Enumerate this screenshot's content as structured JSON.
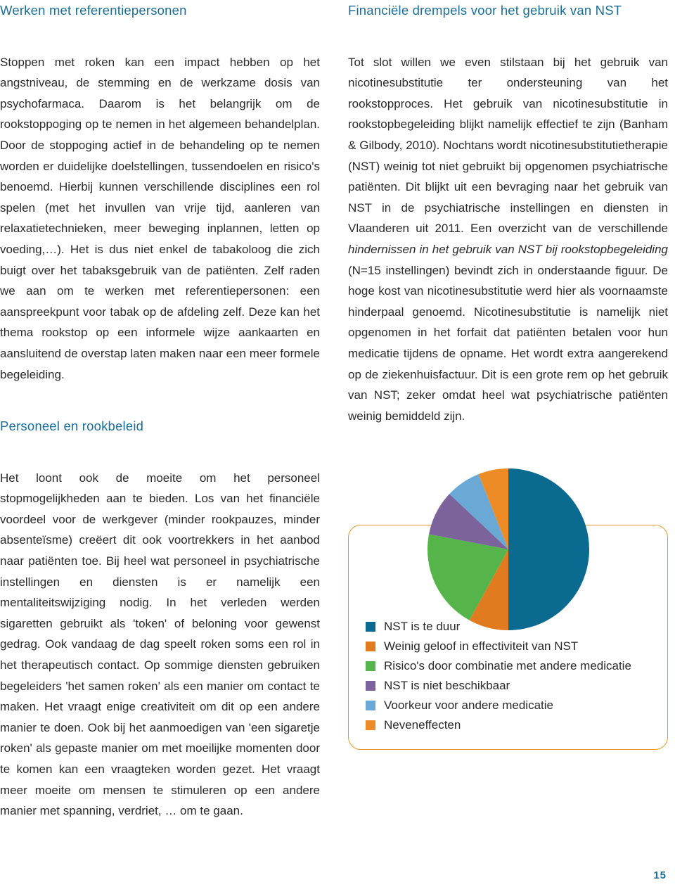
{
  "left": {
    "heading1": "Werken met referentiepersonen",
    "para1": "Stoppen met roken kan een impact hebben op het angstniveau, de stemming en de werkzame dosis van psychofarmaca. Daarom is het belangrijk om de rookstoppoging op te nemen in het algemeen behandelplan. Door de stoppoging actief in de behandeling op te nemen worden er duidelijke doelstellingen, tussendoelen en risico's benoemd. Hierbij kunnen verschillende disciplines een rol spelen (met het invullen van vrije tijd, aanleren van relaxatietechnieken, meer beweging inplannen, letten op voeding,…). Het is dus niet enkel de tabakoloog die zich buigt over het tabaksgebruik van de patiënten. Zelf raden we aan om te werken met referentiepersonen: een aanspreekpunt voor tabak op de afdeling zelf. Deze kan het thema rookstop op een informele wijze aankaarten en aansluitend de overstap laten maken naar een meer formele begeleiding.",
    "heading2": "Personeel en rookbeleid",
    "para2": "Het loont ook de moeite om het personeel stopmogelijkheden aan te bieden. Los van het financiële voordeel voor de werkgever (minder rookpauzes, minder absenteïsme) creëert dit ook voortrekkers in het aanbod naar patiënten toe. Bij heel wat personeel in psychiatrische instellingen en diensten is er namelijk een mentaliteitswijziging nodig. In het verleden werden sigaretten gebruikt als 'token' of beloning voor gewenst gedrag. Ook vandaag de dag speelt roken soms een rol in het therapeutisch contact. Op sommige diensten gebruiken begeleiders 'het samen roken' als een manier om contact te maken. Het vraagt enige creativiteit om dit op een andere manier te doen. Ook bij het aanmoedigen van 'een sigaretje roken' als gepaste manier om met moeilijke momenten door te komen kan een vraagteken worden gezet. Het vraagt meer moeite om mensen te stimuleren op een andere manier met spanning, verdriet, … om te gaan."
  },
  "right": {
    "heading": "Financiële drempels voor het gebruik van NST",
    "para_pre": "Tot slot willen we even stilstaan bij het gebruik van nicotinesubstitutie ter ondersteuning van het rookstopproces. Het gebruik van nicotinesubstitutie in rookstopbegeleiding blijkt namelijk effectief te zijn (Banham & Gilbody, 2010). Nochtans wordt nicotinesubstitutietherapie (NST) weinig tot niet gebruikt bij opgenomen psychiatrische patiënten. Dit blijkt uit een bevraging naar het gebruik van NST in de psychiatrische instellingen en diensten in Vlaanderen uit 2011. Een overzicht van de verschillende ",
    "para_italic": "hindernissen in het gebruik van NST bij rookstopbegeleiding",
    "para_post": " (N=15 instellingen) bevindt zich in onderstaande figuur. De hoge kost van nicotinesubstitutie werd hier als voornaamste hinderpaal genoemd. Nicotinesubstitutie is namelijk niet opgenomen in het forfait dat patiënten betalen voor hun medicatie tijdens de opname. Het wordt extra aangerekend op de ziekenhuisfactuur. Dit is een grote rem op het gebruik van NST; zeker omdat heel wat psychiatrische patiënten weinig bemiddeld zijn."
  },
  "chart": {
    "type": "pie",
    "background": "#ffffff",
    "slices": [
      {
        "label": "NST is te duur",
        "value": 50,
        "color": "#0b6a90"
      },
      {
        "label": "Weinig geloof in effectiviteit van NST",
        "value": 8,
        "color": "#e07b1f"
      },
      {
        "label": "Risico's door combinatie met andere medicatie",
        "value": 20,
        "color": "#55b54b"
      },
      {
        "label": "NST is niet beschikbaar",
        "value": 9,
        "color": "#7d639b"
      },
      {
        "label": "Voorkeur voor andere medicatie",
        "value": 7,
        "color": "#6aa9d6"
      },
      {
        "label": "Neveneffecten",
        "value": 6,
        "color": "#ed8b26"
      }
    ],
    "legend_border_color": "#e69a2e",
    "legend_border_radius": 18,
    "swatch_size": 14,
    "font_size": 17
  },
  "page_number": "15"
}
